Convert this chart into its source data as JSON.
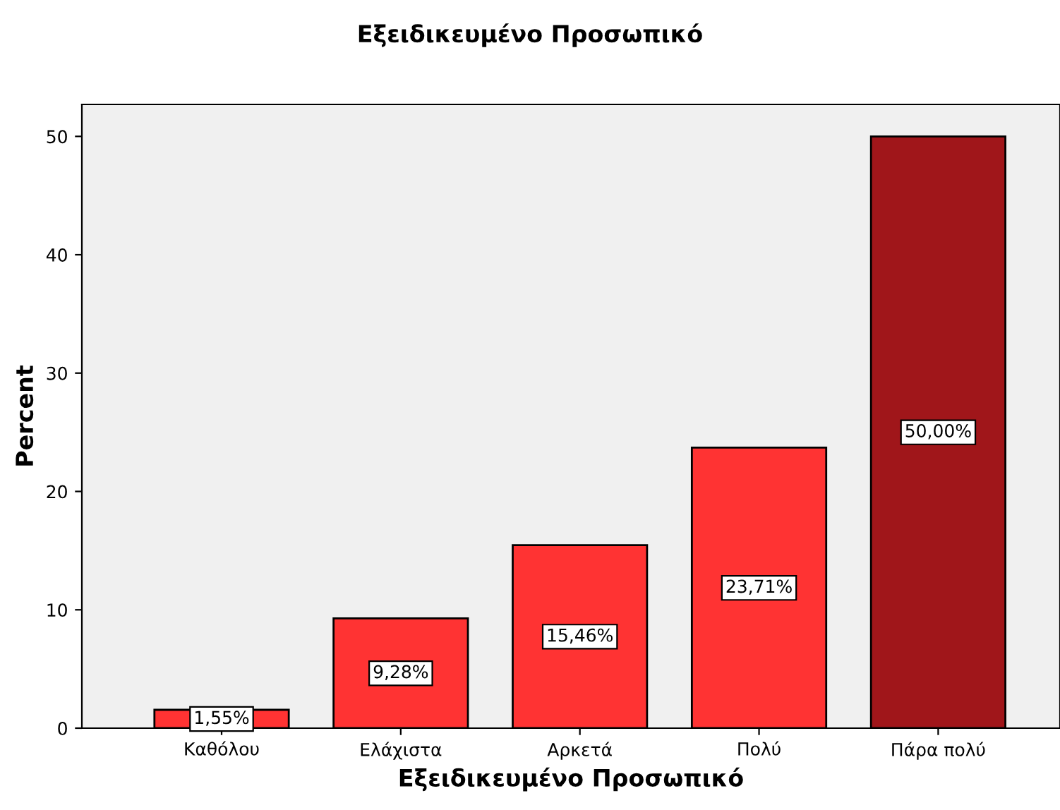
{
  "chart_data": {
    "type": "bar",
    "title": "Εξειδικευμένο Προσωπικό",
    "xlabel": "Εξειδικευμένο Προσωπικό",
    "ylabel": "Percent",
    "categories": [
      "Καθόλου",
      "Ελάχιστα",
      "Αρκετά",
      "Πολύ",
      "Πάρα πολύ"
    ],
    "values": [
      1.55,
      9.28,
      15.46,
      23.71,
      50.0
    ],
    "colors": [
      "#ff3333",
      "#ff3333",
      "#ff3333",
      "#ff3333",
      "#a0161a"
    ],
    "value_labels": [
      "1,55%",
      "9,28%",
      "15,46%",
      "23,71%",
      "50,00%"
    ],
    "ylim": [
      0,
      52.7
    ],
    "yticks": [
      0,
      10,
      20,
      30,
      40,
      50
    ],
    "grid": false
  }
}
